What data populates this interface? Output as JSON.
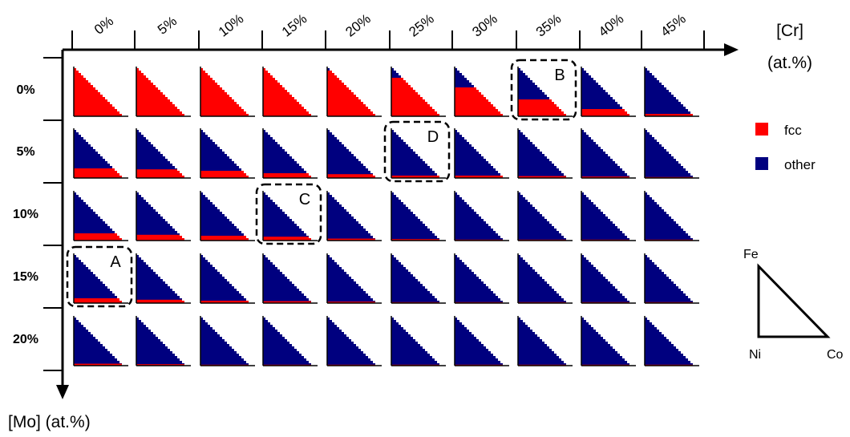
{
  "axes": {
    "cr_title_line1": "[Cr]",
    "cr_title_line2": "(at.%)",
    "mo_title": "[Mo] (at.%)",
    "cr_ticks": [
      "0%",
      "5%",
      "10%",
      "15%",
      "20%",
      "25%",
      "30%",
      "35%",
      "40%",
      "45%"
    ],
    "mo_ticks": [
      "0%",
      "5%",
      "10%",
      "15%",
      "20%"
    ]
  },
  "legend": [
    {
      "label": "fcc",
      "color": "#ff0000"
    },
    {
      "label": "other",
      "color": "#00007f"
    }
  ],
  "ternary_key": {
    "top": "Fe",
    "bottom_left": "Ni",
    "bottom_right": "Co"
  },
  "colors": {
    "fcc": "#ff0000",
    "other": "#00007f"
  },
  "highlights": [
    {
      "label": "A",
      "mo": "15%",
      "cr": "0%"
    },
    {
      "label": "B",
      "mo": "0%",
      "cr": "35%"
    },
    {
      "label": "C",
      "mo": "10%",
      "cr": "15%"
    },
    {
      "label": "D",
      "mo": "5%",
      "cr": "25%"
    }
  ],
  "chart_data": {
    "type": "heatmap",
    "rows": [
      "0%",
      "5%",
      "10%",
      "15%",
      "20%"
    ],
    "columns": [
      "0%",
      "5%",
      "10%",
      "15%",
      "20%",
      "25%",
      "30%",
      "35%",
      "40%",
      "45%"
    ],
    "fcc_fraction": [
      [
        1.0,
        1.0,
        1.0,
        1.0,
        0.95,
        0.8,
        0.6,
        0.35,
        0.15,
        0.05
      ],
      [
        0.2,
        0.18,
        0.15,
        0.1,
        0.08,
        0.05,
        0.05,
        0.04,
        0.03,
        0.02
      ],
      [
        0.15,
        0.12,
        0.1,
        0.08,
        0.04,
        0.03,
        0.02,
        0.02,
        0.02,
        0.02
      ],
      [
        0.1,
        0.07,
        0.05,
        0.04,
        0.03,
        0.02,
        0.02,
        0.02,
        0.02,
        0.02
      ],
      [
        0.04,
        0.03,
        0.02,
        0.02,
        0.02,
        0.02,
        0.02,
        0.02,
        0.02,
        0.02
      ]
    ]
  }
}
